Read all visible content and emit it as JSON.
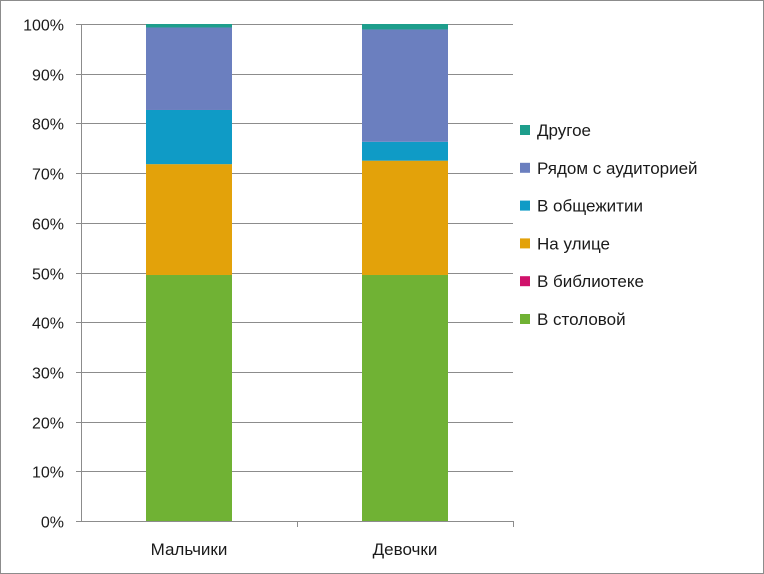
{
  "chart_data": {
    "type": "bar",
    "stacked": true,
    "normalized": true,
    "categories": [
      "Мальчики",
      "Девочки"
    ],
    "ylim": [
      0,
      100
    ],
    "yticks": [
      "0%",
      "10%",
      "20%",
      "30%",
      "40%",
      "50%",
      "60%",
      "70%",
      "80%",
      "90%",
      "100%"
    ],
    "grid": true,
    "legend_position": "right",
    "series": [
      {
        "name": "В столовой",
        "color": "#70b234",
        "values": [
          49.5,
          49.5
        ]
      },
      {
        "name": "В библиотеке",
        "color": "#d0126b",
        "values": [
          0,
          0
        ]
      },
      {
        "name": "На улице",
        "color": "#e3a20a",
        "values": [
          22.3,
          23.0
        ]
      },
      {
        "name": "В общежитии",
        "color": "#0f9bc6",
        "values": [
          10.9,
          3.8
        ]
      },
      {
        "name": "Рядом с аудиторией",
        "color": "#6b7fbf",
        "values": [
          16.6,
          22.6
        ]
      },
      {
        "name": "Другое",
        "color": "#1e9e8c",
        "values": [
          0.7,
          1.1
        ]
      }
    ]
  }
}
